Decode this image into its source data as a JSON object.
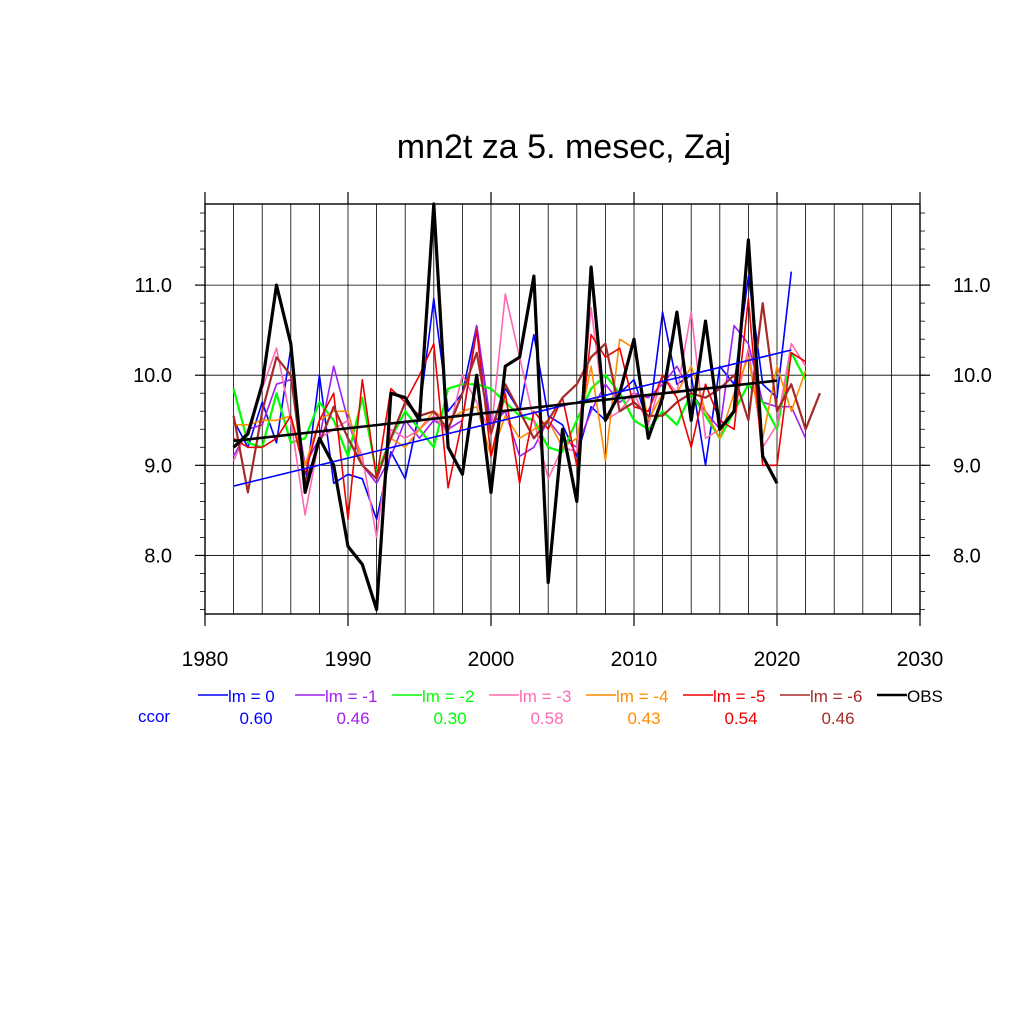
{
  "chart_data": {
    "type": "line",
    "title": "mn2t za 5. mesec, Zaj",
    "xlabel": "",
    "ylabel": "",
    "xlim": [
      1980,
      2030
    ],
    "ylim": [
      7.35,
      11.9
    ],
    "x_ticks": [
      1980,
      1990,
      2000,
      2010,
      2020,
      2030
    ],
    "x_tick_labels": [
      "1980",
      "1990",
      "2000",
      "2010",
      "2020",
      "2030"
    ],
    "y_ticks": [
      8.0,
      9.0,
      10.0,
      11.0
    ],
    "y_tick_labels": [
      "8.0",
      "9.0",
      "10.0",
      "11.0"
    ],
    "grid": true,
    "legend_position": "bottom",
    "ccor_label": "ccor",
    "series": [
      {
        "name": "lm = 0",
        "color": "#0000ff",
        "ccor": "0.60",
        "width": 1.6,
        "start": 1982,
        "values": [
          9.5,
          9.2,
          9.7,
          9.25,
          10.3,
          8.75,
          10.0,
          8.8,
          8.9,
          8.85,
          8.4,
          9.15,
          8.85,
          9.6,
          10.85,
          9.6,
          9.8,
          10.55,
          9.4,
          9.85,
          9.6,
          10.45,
          9.55,
          9.45,
          9.1,
          9.65,
          9.5,
          9.8,
          9.95,
          9.45,
          10.7,
          9.9,
          10.0,
          9.0,
          10.1,
          9.9,
          11.1,
          9.9,
          9.75,
          11.15
        ],
        "trend": [
          [
            1982,
            8.77
          ],
          [
            2021,
            10.28
          ]
        ]
      },
      {
        "name": "lm = -1",
        "color": "#a020f0",
        "ccor": "0.46",
        "width": 1.6,
        "start": 1982,
        "values": [
          9.1,
          9.4,
          9.45,
          9.9,
          9.95,
          9.0,
          9.3,
          10.1,
          9.5,
          9.0,
          8.8,
          9.1,
          9.5,
          9.3,
          9.5,
          9.4,
          9.5,
          10.55,
          9.45,
          9.6,
          9.1,
          9.2,
          9.5,
          9.3,
          9.2,
          9.6,
          9.9,
          9.7,
          9.8,
          9.75,
          9.9,
          10.1,
          9.8,
          9.6,
          9.4,
          10.55,
          10.35,
          9.7,
          9.65,
          9.65,
          9.3
        ],
        "trend": null
      },
      {
        "name": "lm = -2",
        "color": "#00ff00",
        "ccor": "0.30",
        "width": 2.2,
        "start": 1982,
        "values": [
          9.85,
          9.25,
          9.2,
          9.8,
          9.25,
          9.3,
          9.7,
          9.5,
          9.1,
          9.75,
          8.9,
          9.3,
          9.6,
          9.4,
          9.2,
          9.85,
          9.9,
          9.9,
          9.85,
          9.7,
          9.55,
          9.5,
          9.2,
          9.15,
          9.5,
          9.85,
          10.0,
          9.8,
          9.5,
          9.4,
          9.6,
          9.45,
          9.8,
          9.55,
          9.3,
          9.6,
          9.9,
          9.7,
          9.4,
          10.25,
          9.95
        ],
        "trend": null
      },
      {
        "name": "lm = -3",
        "color": "#ff69b4",
        "ccor": "0.58",
        "width": 1.6,
        "start": 1982,
        "values": [
          9.05,
          9.4,
          9.85,
          10.3,
          9.5,
          8.45,
          9.3,
          9.4,
          9.5,
          9.1,
          8.2,
          9.4,
          9.3,
          9.4,
          9.55,
          9.35,
          10.0,
          9.7,
          9.35,
          10.9,
          10.2,
          9.5,
          8.85,
          9.2,
          9.15,
          10.75,
          9.5,
          9.6,
          9.8,
          9.45,
          10.0,
          9.8,
          10.7,
          9.3,
          9.4,
          9.6,
          10.3,
          9.2,
          9.45,
          10.35,
          10.1
        ],
        "trend": null
      },
      {
        "name": "lm = -4",
        "color": "#ff8c00",
        "ccor": "0.43",
        "width": 1.6,
        "start": 1982,
        "values": [
          9.45,
          9.45,
          9.5,
          9.5,
          9.55,
          9.0,
          9.5,
          9.6,
          9.6,
          9.0,
          8.85,
          9.3,
          9.2,
          9.4,
          9.6,
          9.5,
          9.6,
          9.65,
          9.1,
          9.55,
          9.3,
          9.4,
          9.5,
          9.2,
          9.3,
          10.1,
          9.05,
          10.4,
          10.3,
          9.5,
          9.8,
          9.8,
          10.1,
          9.6,
          9.3,
          9.8,
          10.2,
          9.3,
          10.1,
          9.6,
          10.05
        ],
        "trend": null
      },
      {
        "name": "lm = -5",
        "color": "#ee0000",
        "ccor": "0.54",
        "width": 1.6,
        "start": 1982,
        "values": [
          9.3,
          9.2,
          9.2,
          9.3,
          9.55,
          8.9,
          9.5,
          9.8,
          8.4,
          9.95,
          8.85,
          9.85,
          9.7,
          10.0,
          10.35,
          8.75,
          9.5,
          10.5,
          9.1,
          9.8,
          8.8,
          9.6,
          9.4,
          9.75,
          9.0,
          10.45,
          10.2,
          10.3,
          9.65,
          9.6,
          10.0,
          9.75,
          9.2,
          9.9,
          9.5,
          9.4,
          10.85,
          9.0,
          9.0,
          10.25,
          10.15
        ],
        "trend": null
      },
      {
        "name": "lm = -6",
        "color": "#a52a2a",
        "ccor": "0.46",
        "width": 2.2,
        "start": 1982,
        "values": [
          9.55,
          8.7,
          9.6,
          10.2,
          10.0,
          8.8,
          9.25,
          9.65,
          9.3,
          9.0,
          8.85,
          9.3,
          9.7,
          9.55,
          9.6,
          9.4,
          9.8,
          10.25,
          9.35,
          9.9,
          9.6,
          9.3,
          9.5,
          9.75,
          9.9,
          10.2,
          10.35,
          9.6,
          9.7,
          9.55,
          9.55,
          9.7,
          9.8,
          9.75,
          9.85,
          10.0,
          9.5,
          10.8,
          9.6,
          9.9,
          9.4,
          9.8
        ],
        "trend": null
      },
      {
        "name": "OBS",
        "color": "#000000",
        "ccor": "",
        "width": 3.2,
        "start": 1982,
        "values": [
          9.2,
          9.35,
          9.9,
          11.0,
          10.35,
          8.7,
          9.3,
          9.0,
          8.1,
          7.9,
          7.4,
          9.8,
          9.75,
          9.5,
          11.9,
          9.2,
          8.9,
          10.0,
          8.7,
          10.1,
          10.2,
          11.1,
          7.7,
          9.4,
          8.6,
          11.2,
          9.5,
          9.8,
          10.4,
          9.3,
          9.75,
          10.7,
          9.5,
          10.6,
          9.4,
          9.6,
          11.5,
          9.1,
          8.8
        ],
        "trend": [
          [
            1982,
            9.27
          ],
          [
            2020,
            9.94
          ]
        ]
      }
    ]
  }
}
